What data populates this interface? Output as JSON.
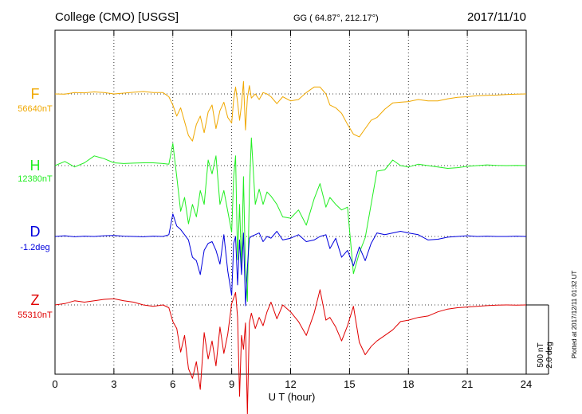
{
  "header": {
    "station": "College (CMO)  [USGS]",
    "coords": "GG ( 64.87°, 212.17°)",
    "date": "2017/11/10"
  },
  "scale": {
    "nt": "500 nT",
    "deg": "2.0 deg"
  },
  "plotted": "Plotted at 2017/12/11 01:32 UT",
  "chart_data": {
    "type": "line",
    "title": "College (CMO)  [USGS]",
    "xlabel": "U T (hour)",
    "xlim": [
      0,
      24
    ],
    "xticks": [
      0,
      3,
      6,
      9,
      12,
      15,
      18,
      21,
      24
    ],
    "xtick_labels": [
      "0",
      "3",
      "6",
      "9",
      "12",
      "15",
      "18",
      "21",
      "24"
    ],
    "grid": "dotted",
    "scale_bar": {
      "nt": 500,
      "deg": 2.0
    },
    "series": [
      {
        "name": "F",
        "baseline_label": "56640nT",
        "color": "#f0a800",
        "units": "nT",
        "baseline": 56640,
        "x": [
          0,
          0.5,
          1,
          1.5,
          2,
          2.5,
          3,
          3.5,
          4,
          4.5,
          5,
          5.5,
          5.8,
          6,
          6.2,
          6.4,
          6.6,
          6.8,
          7,
          7.2,
          7.4,
          7.6,
          7.8,
          8,
          8.2,
          8.4,
          8.6,
          8.8,
          9,
          9.1,
          9.2,
          9.3,
          9.4,
          9.5,
          9.6,
          9.7,
          9.8,
          9.9,
          10,
          10.2,
          10.4,
          10.6,
          10.8,
          11,
          11.3,
          11.6,
          12,
          12.4,
          12.8,
          13.2,
          13.5,
          13.8,
          14,
          14.3,
          14.6,
          14.9,
          15.2,
          15.5,
          15.8,
          16.1,
          16.4,
          16.8,
          17.2,
          17.6,
          18,
          18.5,
          19,
          19.5,
          20,
          20.5,
          21,
          21.5,
          22,
          22.5,
          23,
          23.5,
          24
        ],
        "values": [
          56640,
          56638,
          56650,
          56648,
          56655,
          56650,
          56640,
          56646,
          56652,
          56658,
          56650,
          56650,
          56620,
          56560,
          56480,
          56540,
          56440,
          56340,
          56300,
          56420,
          56480,
          56360,
          56510,
          56560,
          56390,
          56520,
          56580,
          56470,
          56430,
          56600,
          56690,
          56580,
          56450,
          56560,
          56730,
          56380,
          56610,
          56700,
          56610,
          56640,
          56600,
          56650,
          56640,
          56620,
          56570,
          56620,
          56590,
          56600,
          56650,
          56690,
          56690,
          56640,
          56560,
          56540,
          56500,
          56420,
          56350,
          56330,
          56390,
          56450,
          56470,
          56530,
          56575,
          56580,
          56585,
          56600,
          56590,
          56590,
          56605,
          56615,
          56620,
          56628,
          56630,
          56632,
          56636,
          56638,
          56640
        ]
      },
      {
        "name": "H",
        "baseline_label": "12380nT",
        "color": "#22ee22",
        "units": "nT",
        "baseline": 12380,
        "x": [
          0,
          0.5,
          1,
          1.5,
          2,
          2.5,
          3,
          3.5,
          4,
          4.5,
          5,
          5.5,
          5.8,
          6,
          6.2,
          6.4,
          6.6,
          6.8,
          7,
          7.2,
          7.4,
          7.6,
          7.8,
          8,
          8.2,
          8.4,
          8.6,
          8.8,
          9,
          9.1,
          9.2,
          9.3,
          9.4,
          9.5,
          9.6,
          9.7,
          9.8,
          9.9,
          10,
          10.2,
          10.4,
          10.6,
          10.8,
          11,
          11.3,
          11.6,
          12,
          12.4,
          12.8,
          13.2,
          13.5,
          13.8,
          14,
          14.3,
          14.6,
          14.9,
          15.2,
          15.5,
          15.8,
          16.1,
          16.4,
          16.8,
          17.2,
          17.6,
          18,
          18.5,
          19,
          19.5,
          20,
          20.5,
          21,
          21.5,
          22,
          22.5,
          23,
          23.5,
          24
        ],
        "values": [
          12380,
          12410,
          12370,
          12400,
          12450,
          12430,
          12400,
          12395,
          12398,
          12400,
          12400,
          12395,
          12390,
          12540,
          12300,
          12050,
          12150,
          11960,
          12100,
          12010,
          12200,
          12100,
          12420,
          12320,
          12450,
          12100,
          12200,
          12050,
          11900,
          12300,
          12450,
          11700,
          12100,
          11650,
          12300,
          11630,
          11400,
          12200,
          12580,
          12100,
          12210,
          12100,
          12190,
          12160,
          12100,
          12010,
          12000,
          12060,
          11950,
          12140,
          12250,
          12080,
          12150,
          12100,
          12060,
          12080,
          11600,
          11750,
          11860,
          12100,
          12340,
          12350,
          12420,
          12380,
          12370,
          12390,
          12380,
          12370,
          12360,
          12365,
          12375,
          12380,
          12385,
          12382,
          12380,
          12381,
          12380
        ]
      },
      {
        "name": "D",
        "baseline_label": "-1.2deg",
        "color": "#0000dd",
        "units": "deg",
        "baseline": -1.2,
        "x": [
          0,
          0.5,
          1,
          1.5,
          2,
          2.5,
          3,
          3.5,
          4,
          4.5,
          5,
          5.5,
          5.8,
          6,
          6.2,
          6.4,
          6.6,
          6.8,
          7,
          7.2,
          7.4,
          7.6,
          7.8,
          8,
          8.2,
          8.4,
          8.6,
          8.8,
          9,
          9.1,
          9.2,
          9.3,
          9.4,
          9.5,
          9.6,
          9.7,
          9.8,
          9.9,
          10,
          10.2,
          10.4,
          10.6,
          10.8,
          11,
          11.3,
          11.6,
          12,
          12.4,
          12.8,
          13.2,
          13.5,
          13.8,
          14,
          14.3,
          14.6,
          14.9,
          15.2,
          15.5,
          15.8,
          16.1,
          16.4,
          16.8,
          17.2,
          17.6,
          18,
          18.5,
          19,
          19.5,
          20,
          20.5,
          21,
          21.5,
          22,
          22.5,
          23,
          23.5,
          24
        ],
        "values": [
          -1.2,
          -1.18,
          -1.21,
          -1.19,
          -1.2,
          -1.18,
          -1.17,
          -1.19,
          -1.2,
          -1.21,
          -1.19,
          -1.2,
          -1.15,
          -0.55,
          -0.9,
          -1.0,
          -1.15,
          -1.3,
          -1.8,
          -1.9,
          -2.3,
          -1.6,
          -1.4,
          -1.35,
          -1.6,
          -2.0,
          -1.15,
          -2.2,
          -2.9,
          -1.4,
          -1.2,
          -2.6,
          -1.3,
          -2.3,
          -1.1,
          -3.2,
          -2.1,
          -1.25,
          -1.2,
          -1.15,
          -1.1,
          -1.35,
          -1.2,
          -1.25,
          -1.05,
          -1.3,
          -1.25,
          -1.15,
          -1.35,
          -1.3,
          -1.2,
          -1.15,
          -1.55,
          -1.25,
          -1.8,
          -1.6,
          -2.05,
          -1.5,
          -1.9,
          -1.4,
          -1.1,
          -1.15,
          -1.1,
          -1.05,
          -1.1,
          -1.15,
          -1.3,
          -1.28,
          -1.22,
          -1.2,
          -1.18,
          -1.2,
          -1.19,
          -1.2,
          -1.2,
          -1.19,
          -1.2
        ]
      },
      {
        "name": "Z",
        "baseline_label": "55310nT",
        "color": "#e00000",
        "units": "nT",
        "baseline": 55310,
        "x": [
          0,
          0.5,
          1,
          1.5,
          2,
          2.5,
          3,
          3.5,
          4,
          4.5,
          5,
          5.5,
          5.8,
          6,
          6.2,
          6.4,
          6.6,
          6.8,
          7,
          7.2,
          7.4,
          7.6,
          7.8,
          8,
          8.2,
          8.4,
          8.6,
          8.8,
          9,
          9.1,
          9.2,
          9.3,
          9.4,
          9.5,
          9.6,
          9.7,
          9.8,
          9.9,
          10,
          10.2,
          10.4,
          10.6,
          10.8,
          11,
          11.3,
          11.6,
          12,
          12.4,
          12.8,
          13.2,
          13.5,
          13.8,
          14,
          14.3,
          14.6,
          14.9,
          15.2,
          15.5,
          15.8,
          16.1,
          16.4,
          16.8,
          17.2,
          17.6,
          18,
          18.5,
          19,
          19.5,
          20,
          20.5,
          21,
          21.5,
          22,
          22.5,
          23,
          23.5,
          24
        ],
        "values": [
          55310,
          55320,
          55340,
          55330,
          55340,
          55350,
          55355,
          55340,
          55330,
          55310,
          55300,
          55310,
          55290,
          55190,
          55140,
          54970,
          55090,
          54850,
          54780,
          54900,
          54700,
          55110,
          54920,
          55050,
          54870,
          55150,
          54960,
          55100,
          55320,
          55360,
          55400,
          55220,
          54650,
          55090,
          54990,
          55180,
          54520,
          55180,
          55250,
          55140,
          55220,
          55160,
          55260,
          55330,
          55210,
          55310,
          55260,
          55190,
          55090,
          55250,
          55420,
          55200,
          55220,
          55150,
          55050,
          55160,
          55300,
          55040,
          54950,
          55010,
          55050,
          55090,
          55130,
          55190,
          55200,
          55220,
          55230,
          55260,
          55280,
          55290,
          55295,
          55300,
          55305,
          55308,
          55310,
          55309,
          55310
        ]
      }
    ]
  }
}
